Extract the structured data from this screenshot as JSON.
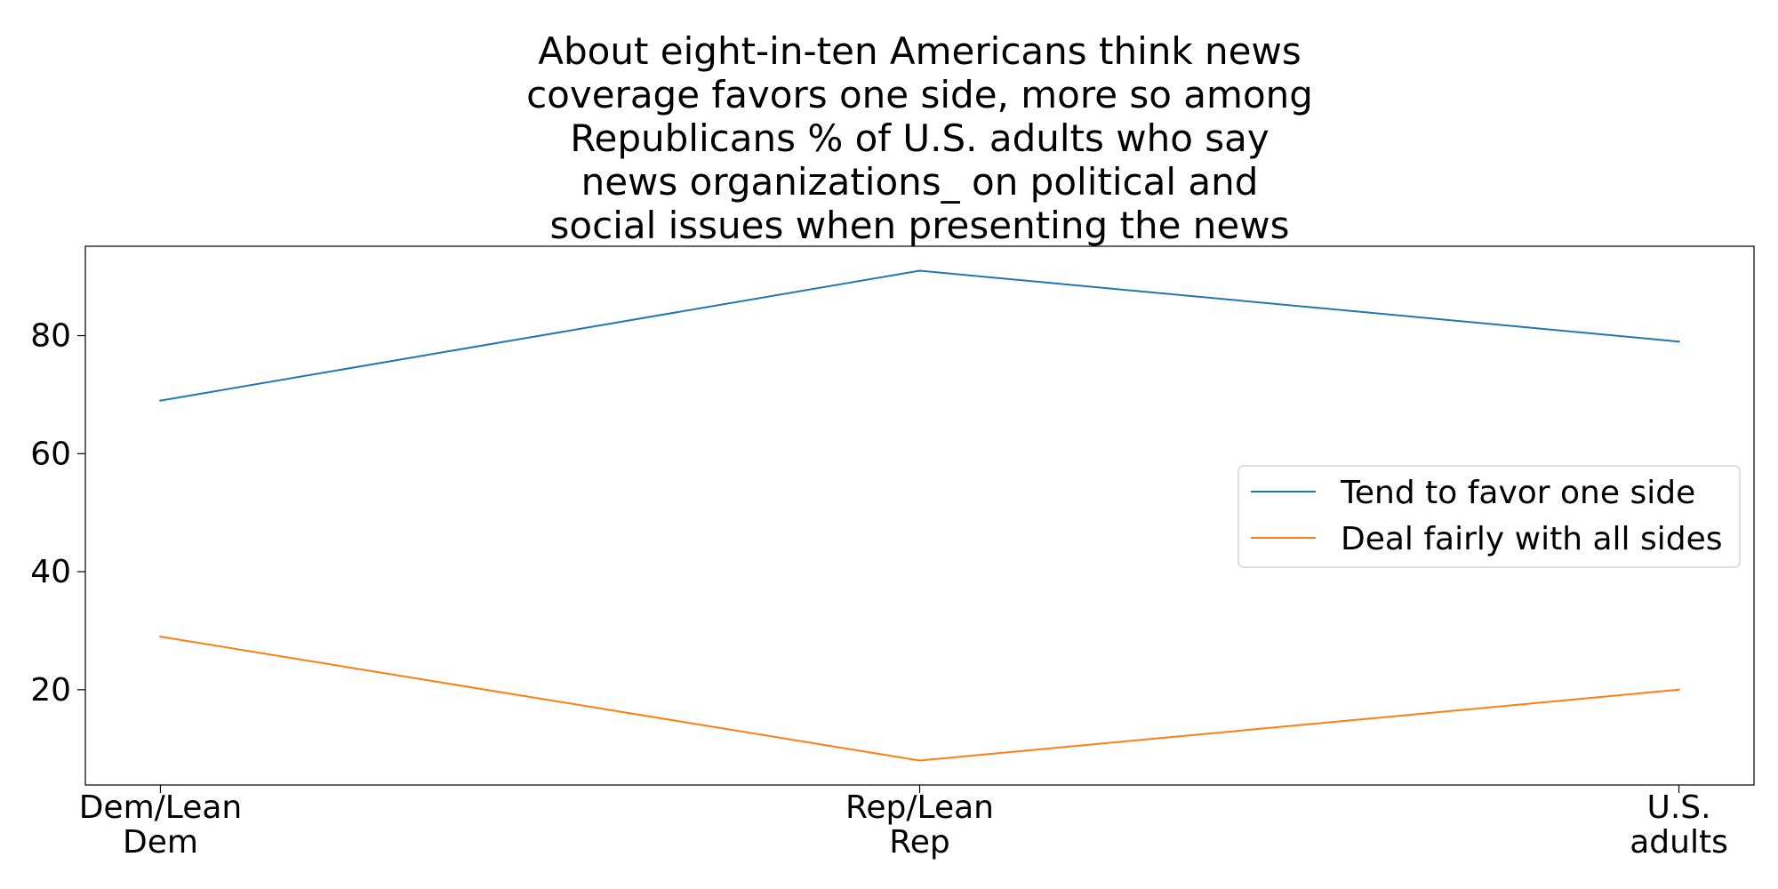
{
  "chart_data": {
    "type": "line",
    "title_lines": [
      "About eight-in-ten Americans think news",
      "coverage favors one side, more so among",
      "Republicans % of U.S. adults who say",
      "news organizations_ on political and",
      "social issues when presenting the news"
    ],
    "categories": [
      [
        "Dem/Lean",
        "Dem"
      ],
      [
        "Rep/Lean",
        "Rep"
      ],
      [
        "U.S.",
        "adults"
      ]
    ],
    "series": [
      {
        "name": "Tend to favor one side",
        "values": [
          69,
          91,
          79
        ],
        "color": "#1f77b4"
      },
      {
        "name": "Deal fairly with all sides",
        "values": [
          29,
          8,
          20
        ],
        "color": "#ff7f0e"
      }
    ],
    "ylim": [
      3.85,
      95.15
    ],
    "yticks": [
      20,
      40,
      60,
      80
    ],
    "grid": false,
    "legend_position": "center-right"
  }
}
